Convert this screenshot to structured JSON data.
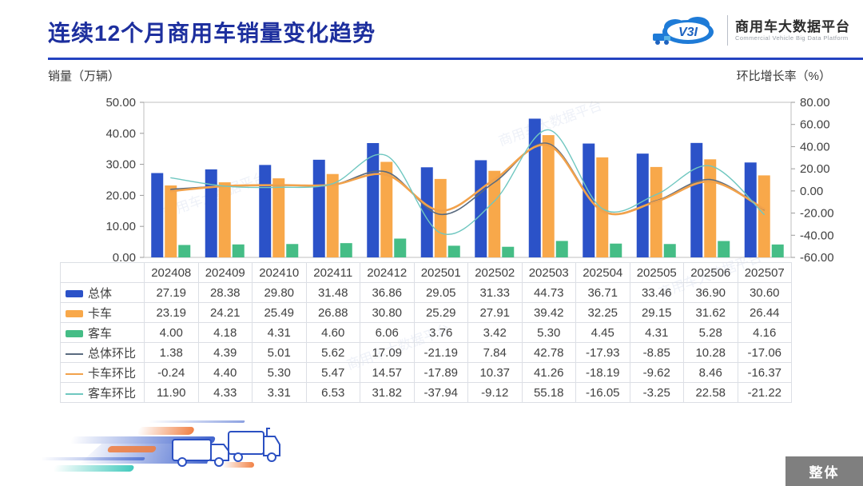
{
  "header": {
    "title": "连续12个月商用车销量变化趋势",
    "logo": {
      "badge": "V3I",
      "title_cn": "商用车大数据平台",
      "title_en": "Commercial Vehicle Big Data Platform"
    }
  },
  "watermark": "商用车大数据平台",
  "chart_data": {
    "type": "bar+line combo",
    "title": "连续12个月商用车销量变化趋势",
    "categories": [
      "202408",
      "202409",
      "202410",
      "202411",
      "202412",
      "202501",
      "202502",
      "202503",
      "202504",
      "202505",
      "202506",
      "202507"
    ],
    "left_axis": {
      "label": "销量（万辆）",
      "min": 0,
      "max": 50,
      "step": 10
    },
    "right_axis": {
      "label": "环比增长率（%）",
      "min": -60,
      "max": 80,
      "step": 20
    },
    "grid": false,
    "legend_position": "table-left-column",
    "bar_series": [
      {
        "name": "总体",
        "color": "#2b52c8",
        "values": [
          27.19,
          28.38,
          29.8,
          31.48,
          36.86,
          29.05,
          31.33,
          44.73,
          36.71,
          33.46,
          36.9,
          30.6
        ]
      },
      {
        "name": "卡车",
        "color": "#f8a84a",
        "values": [
          23.19,
          24.21,
          25.49,
          26.88,
          30.8,
          25.29,
          27.91,
          39.42,
          32.25,
          29.15,
          31.62,
          26.44
        ]
      },
      {
        "name": "客车",
        "color": "#45bd86",
        "values": [
          4.0,
          4.18,
          4.31,
          4.6,
          6.06,
          3.76,
          3.42,
          5.3,
          4.45,
          4.31,
          5.28,
          4.16
        ]
      }
    ],
    "line_series": [
      {
        "name": "总体环比",
        "color": "#5a6b7f",
        "width": 1.6,
        "values": [
          1.38,
          4.39,
          5.01,
          5.62,
          17.09,
          -21.19,
          7.84,
          42.78,
          -17.93,
          -8.85,
          10.28,
          -17.06
        ]
      },
      {
        "name": "卡车环比",
        "color": "#f2a24b",
        "width": 2.6,
        "values": [
          -0.24,
          4.4,
          5.3,
          5.47,
          14.57,
          -17.89,
          10.37,
          41.26,
          -18.19,
          -9.62,
          8.46,
          -16.37
        ]
      },
      {
        "name": "客车环比",
        "color": "#6fc7c0",
        "width": 1.4,
        "values": [
          11.9,
          4.33,
          3.31,
          6.53,
          31.82,
          -37.94,
          -9.12,
          55.18,
          -16.05,
          -3.25,
          22.58,
          -21.22
        ]
      }
    ]
  },
  "footer": {
    "overall_button": "整体"
  }
}
